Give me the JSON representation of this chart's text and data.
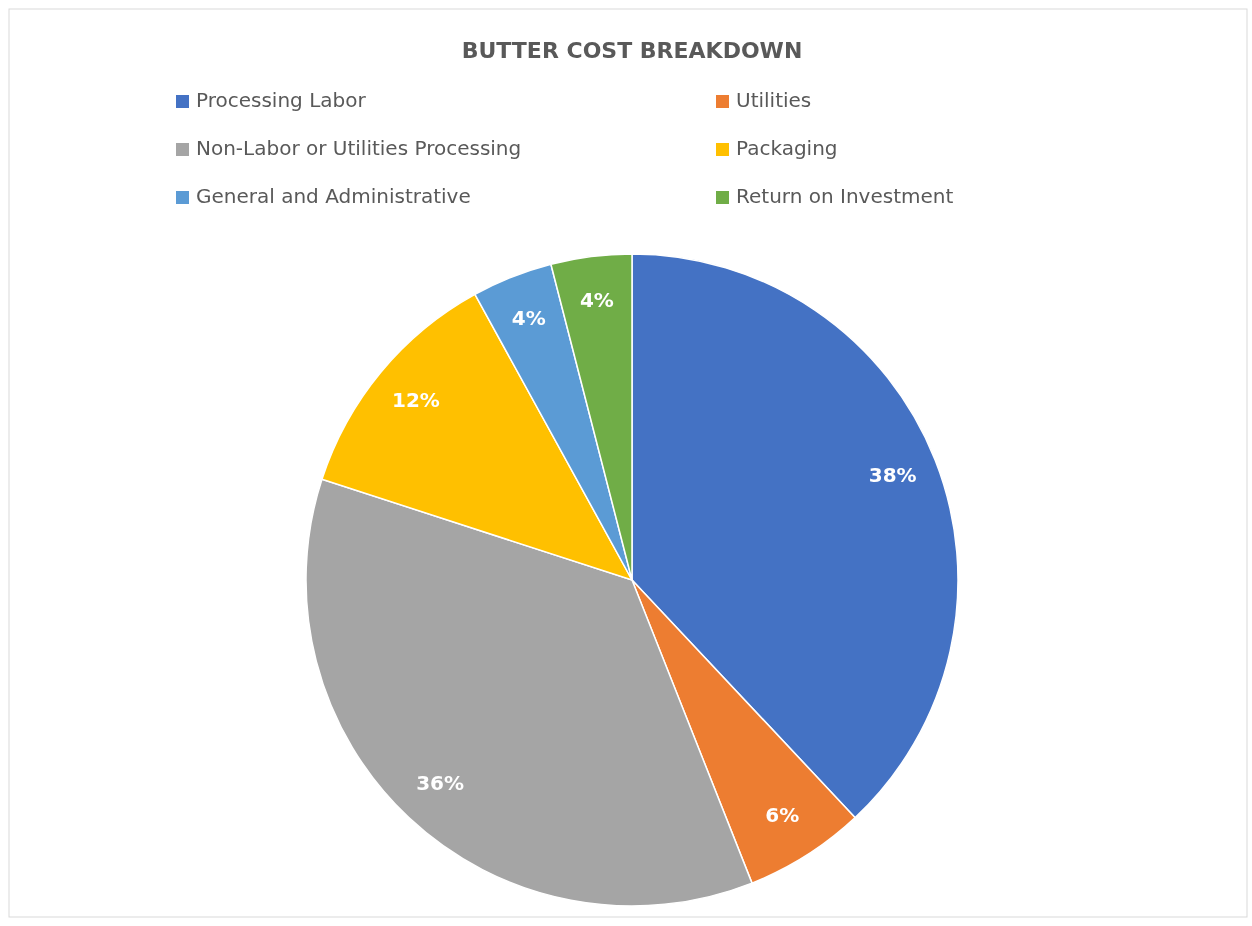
{
  "chart_data": {
    "type": "pie",
    "title": "BUTTER COST BREAKDOWN",
    "categories": [
      "Processing Labor",
      "Utilities",
      "Non-Labor or Utilities Processing",
      "Packaging",
      "General and Administrative",
      "Return on Investment"
    ],
    "values": [
      38,
      6,
      36,
      12,
      4,
      4
    ],
    "colors": [
      "#4472c4",
      "#ed7d31",
      "#a5a5a5",
      "#ffc000",
      "#5b9bd5",
      "#70ad47"
    ],
    "value_labels": [
      "38%",
      "6%",
      "36%",
      "12%",
      "4%",
      "4%"
    ],
    "legend": "top"
  }
}
